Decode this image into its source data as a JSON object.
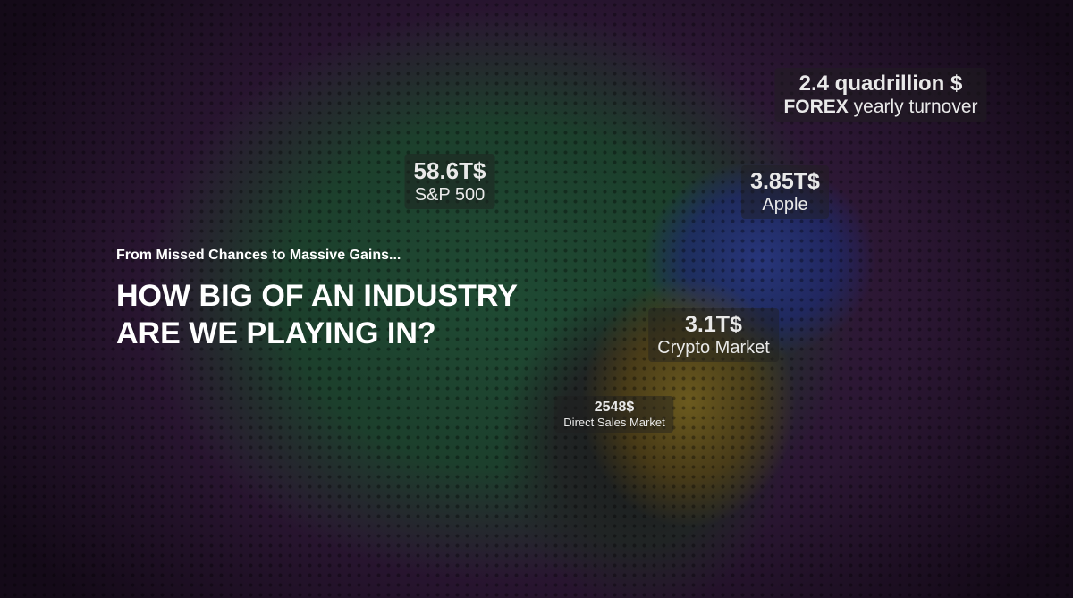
{
  "intro": "From Missed Chances to Massive Gains...",
  "headline": [
    "HOW BIG OF AN INDUSTRY",
    "ARE WE PLAYING IN?"
  ],
  "labels": {
    "forex": {
      "value": "2.4 quadrillion $",
      "name_bold": "FOREX",
      "name": "yearly turnover"
    },
    "sp500": {
      "value": "58.6T$",
      "name": "S&P 500"
    },
    "apple": {
      "value": "3.85T$",
      "name": "Apple"
    },
    "crypto": {
      "value": "3.1T$",
      "name": "Crypto Market"
    },
    "direct_sales": {
      "value": "2548$",
      "name": "Direct Sales Market"
    }
  }
}
